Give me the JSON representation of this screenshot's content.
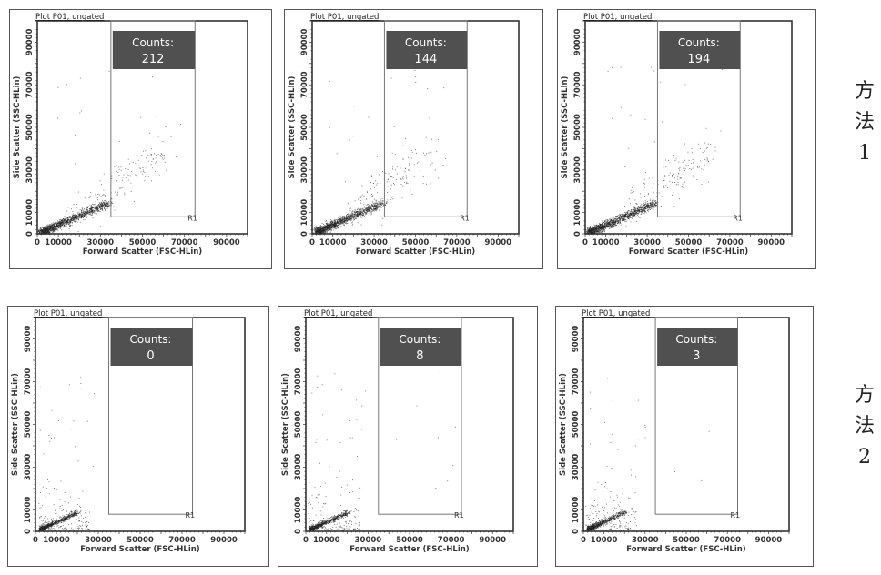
{
  "method_labels": [
    {
      "line1": "方",
      "line2": "法",
      "line3": "1"
    },
    {
      "line1": "方",
      "line2": "法",
      "line3": "2"
    }
  ],
  "chart_data": [
    {
      "type": "scatter",
      "title": "Plot P01, ungated",
      "xlabel": "Forward Scatter (FSC-HLin)",
      "ylabel": "Side Scatter (SSC-HLin)",
      "xlim": [
        0,
        100000
      ],
      "ylim": [
        0,
        100000
      ],
      "xticks": [
        "0",
        "10000",
        "30000",
        "50000",
        "70000",
        "90000"
      ],
      "yticks": [
        "0",
        "10000",
        "30000",
        "50000",
        "70000",
        "90000"
      ],
      "gate": {
        "name": "R1",
        "x": [
          35000,
          75000
        ],
        "y": [
          8000,
          100000
        ]
      },
      "counts_label": "Counts:",
      "counts": "212",
      "group": "方法1",
      "spread": "wide"
    },
    {
      "type": "scatter",
      "title": "Plot P01, ungated",
      "xlabel": "Forward Scatter (FSC-HLin)",
      "ylabel": "Side Scatter (SSC-HLin)",
      "xlim": [
        0,
        100000
      ],
      "ylim": [
        0,
        100000
      ],
      "xticks": [
        "0",
        "10000",
        "30000",
        "50000",
        "70000",
        "90000"
      ],
      "yticks": [
        "0",
        "10000",
        "30000",
        "50000",
        "70000",
        "90000"
      ],
      "gate": {
        "name": "R1",
        "x": [
          35000,
          75000
        ],
        "y": [
          8000,
          100000
        ]
      },
      "counts_label": "Counts:",
      "counts": "144",
      "group": "方法1",
      "spread": "wide"
    },
    {
      "type": "scatter",
      "title": "Plot P01, ungated",
      "xlabel": "Forward Scatter (FSC-HLin)",
      "ylabel": "Side Scatter (SSC-HLin)",
      "xlim": [
        0,
        100000
      ],
      "ylim": [
        0,
        100000
      ],
      "xticks": [
        "0",
        "10000",
        "30000",
        "50000",
        "70000",
        "90000"
      ],
      "yticks": [
        "0",
        "10000",
        "30000",
        "50000",
        "70000",
        "90000"
      ],
      "gate": {
        "name": "R1",
        "x": [
          35000,
          75000
        ],
        "y": [
          8000,
          100000
        ]
      },
      "counts_label": "Counts:",
      "counts": "194",
      "group": "方法1",
      "spread": "wide"
    },
    {
      "type": "scatter",
      "title": "Plot P01, ungated",
      "xlabel": "Forward Scatter (FSC-HLin)",
      "ylabel": "Side Scatter (SSC-HLin)",
      "xlim": [
        0,
        100000
      ],
      "ylim": [
        0,
        100000
      ],
      "xticks": [
        "0",
        "10000",
        "30000",
        "50000",
        "70000",
        "90000"
      ],
      "yticks": [
        "0",
        "10000",
        "30000",
        "50000",
        "70000",
        "90000"
      ],
      "gate": {
        "name": "R1",
        "x": [
          35000,
          75000
        ],
        "y": [
          8000,
          100000
        ]
      },
      "counts_label": "Counts:",
      "counts": "0",
      "group": "方法2",
      "spread": "narrow"
    },
    {
      "type": "scatter",
      "title": "Plot P01, ungated",
      "xlabel": "Forward Scatter (FSC-HLin)",
      "ylabel": "Side Scatter (SSC-HLin)",
      "xlim": [
        0,
        100000
      ],
      "ylim": [
        0,
        100000
      ],
      "xticks": [
        "0",
        "10000",
        "30000",
        "50000",
        "70000",
        "90000"
      ],
      "yticks": [
        "0",
        "10000",
        "30000",
        "50000",
        "70000",
        "90000"
      ],
      "gate": {
        "name": "R1",
        "x": [
          35000,
          75000
        ],
        "y": [
          8000,
          100000
        ]
      },
      "counts_label": "Counts:",
      "counts": "8",
      "group": "方法2",
      "spread": "narrow"
    },
    {
      "type": "scatter",
      "title": "Plot P01, ungated",
      "xlabel": "Forward Scatter (FSC-HLin)",
      "ylabel": "Side Scatter (SSC-HLin)",
      "xlim": [
        0,
        100000
      ],
      "ylim": [
        0,
        100000
      ],
      "xticks": [
        "0",
        "10000",
        "30000",
        "50000",
        "70000",
        "90000"
      ],
      "yticks": [
        "0",
        "10000",
        "30000",
        "50000",
        "70000",
        "90000"
      ],
      "gate": {
        "name": "R1",
        "x": [
          35000,
          75000
        ],
        "y": [
          8000,
          100000
        ]
      },
      "counts_label": "Counts:",
      "counts": "3",
      "group": "方法2",
      "spread": "narrow"
    }
  ]
}
